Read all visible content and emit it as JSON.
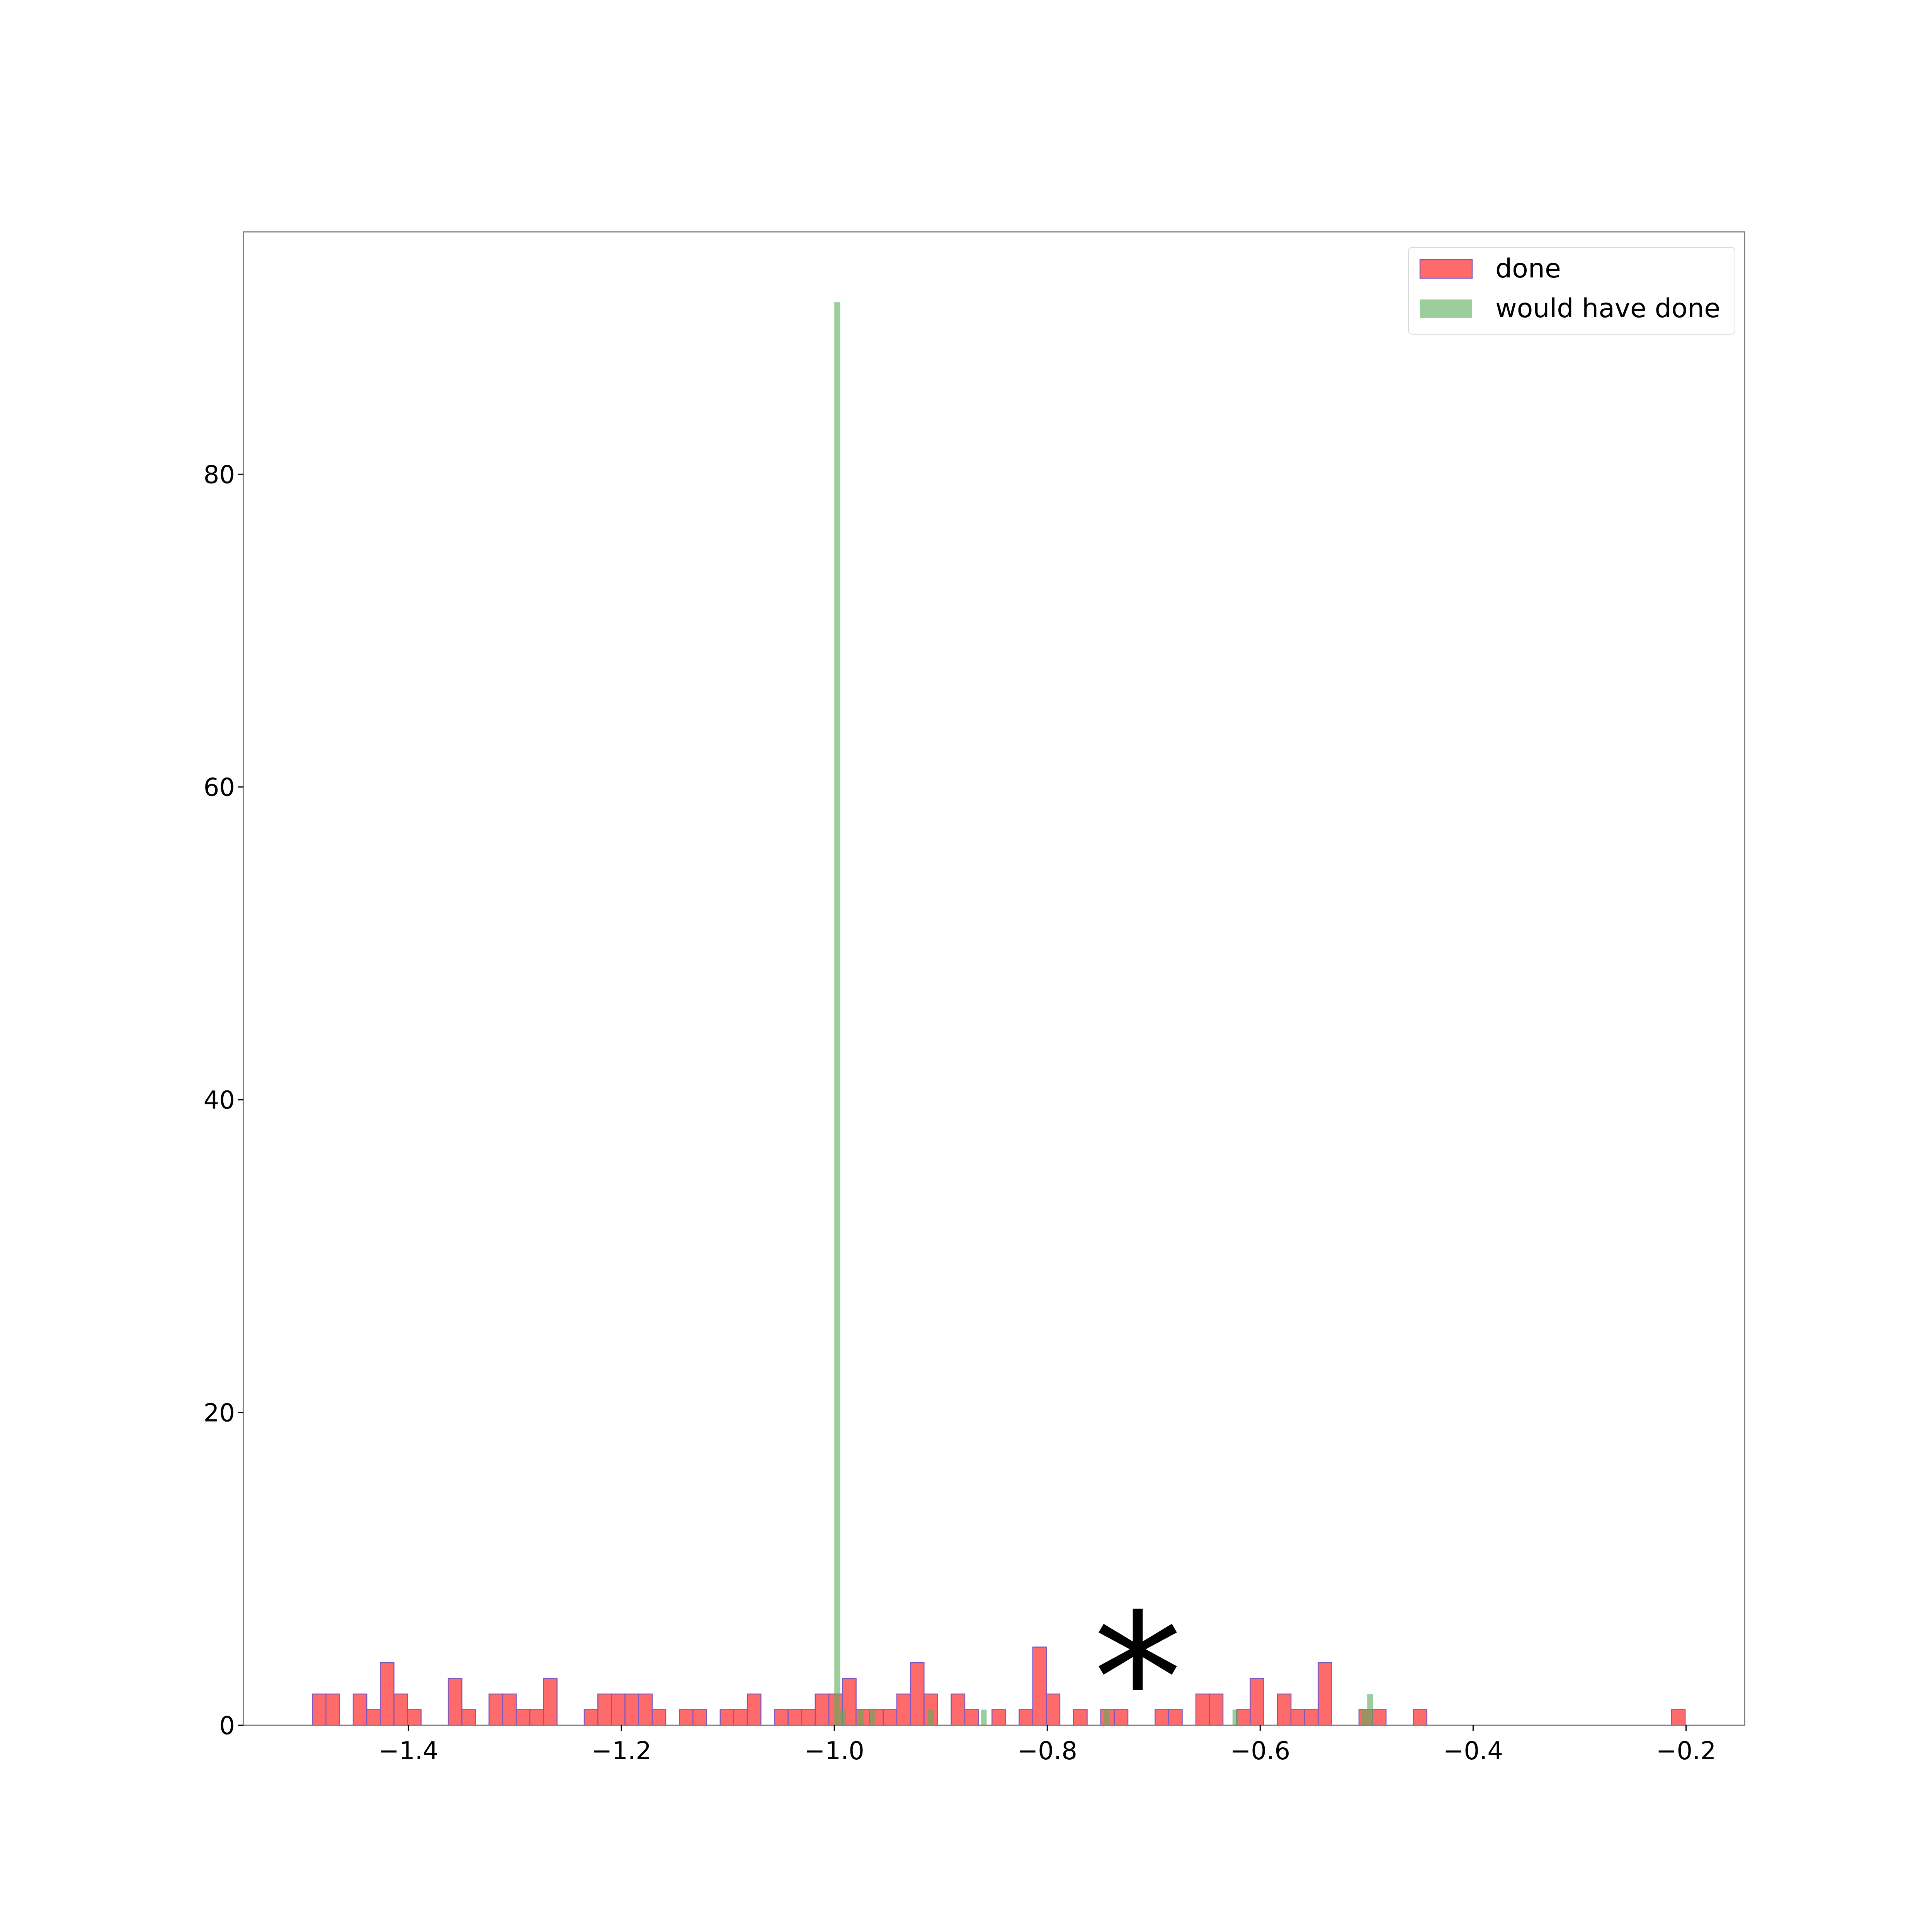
{
  "chart_data": {
    "type": "bar",
    "title": "",
    "xlabel": "",
    "ylabel": "",
    "xlim": [
      -1.555,
      -0.145
    ],
    "ylim": [
      0,
      95.5
    ],
    "xticks": [
      -1.4,
      -1.2,
      -1.0,
      -0.8,
      -0.6,
      -0.4,
      -0.2
    ],
    "xtick_labels": [
      "−1.4",
      "−1.2",
      "−1.0",
      "−0.8",
      "−0.6",
      "−0.4",
      "−0.2"
    ],
    "yticks": [
      0,
      20,
      40,
      60,
      80
    ],
    "ytick_labels": [
      "0",
      "20",
      "40",
      "60",
      "80"
    ],
    "grid": false,
    "legend_position": "top-right",
    "series": [
      {
        "name": "done",
        "color": "#ff6b6b",
        "edge_color": "#7b57c4",
        "opacity": 1.0,
        "bin_width": 0.01275,
        "bins": [
          [
            -1.4902,
            2
          ],
          [
            -1.4775,
            2
          ],
          [
            -1.4519,
            2
          ],
          [
            -1.4392,
            1
          ],
          [
            -1.4264,
            4
          ],
          [
            -1.4136,
            2
          ],
          [
            -1.4009,
            1
          ],
          [
            -1.3626,
            3
          ],
          [
            -1.3498,
            1
          ],
          [
            -1.3243,
            2
          ],
          [
            -1.3115,
            2
          ],
          [
            -1.2987,
            1
          ],
          [
            -1.286,
            1
          ],
          [
            -1.2732,
            3
          ],
          [
            -1.2349,
            1
          ],
          [
            -1.2221,
            2
          ],
          [
            -1.2094,
            2
          ],
          [
            -1.1966,
            2
          ],
          [
            -1.1838,
            2
          ],
          [
            -1.1711,
            1
          ],
          [
            -1.1455,
            1
          ],
          [
            -1.1328,
            1
          ],
          [
            -1.1072,
            1
          ],
          [
            -1.0945,
            1
          ],
          [
            -1.0817,
            2
          ],
          [
            -1.0562,
            1
          ],
          [
            -1.0434,
            1
          ],
          [
            -1.0306,
            1
          ],
          [
            -1.0179,
            2
          ],
          [
            -1.0051,
            2
          ],
          [
            -0.9923,
            3
          ],
          [
            -0.9796,
            1
          ],
          [
            -0.9668,
            1
          ],
          [
            -0.954,
            1
          ],
          [
            -0.9413,
            2
          ],
          [
            -0.9285,
            4
          ],
          [
            -0.9157,
            2
          ],
          [
            -0.8902,
            2
          ],
          [
            -0.8774,
            1
          ],
          [
            -0.8519,
            1
          ],
          [
            -0.8264,
            1
          ],
          [
            -0.8136,
            5
          ],
          [
            -0.8009,
            2
          ],
          [
            -0.7753,
            1
          ],
          [
            -0.7498,
            1
          ],
          [
            -0.737,
            1
          ],
          [
            -0.6987,
            1
          ],
          [
            -0.686,
            1
          ],
          [
            -0.6604,
            2
          ],
          [
            -0.6477,
            2
          ],
          [
            -0.6221,
            1
          ],
          [
            -0.6094,
            3
          ],
          [
            -0.5838,
            2
          ],
          [
            -0.5711,
            1
          ],
          [
            -0.5583,
            1
          ],
          [
            -0.5455,
            4
          ],
          [
            -0.5072,
            1
          ],
          [
            -0.4945,
            1
          ],
          [
            -0.4562,
            1
          ],
          [
            -0.2136,
            1
          ]
        ]
      },
      {
        "name": "would have done",
        "color": "#5aad5a",
        "opacity": 0.6,
        "bin_width": 0.0055,
        "bins": [
          [
            -1.0,
            91
          ],
          [
            -0.9945,
            1
          ],
          [
            -0.978,
            1
          ],
          [
            -0.967,
            1
          ],
          [
            -0.912,
            1
          ],
          [
            -0.8624,
            1
          ],
          [
            -0.747,
            1
          ],
          [
            -0.626,
            1
          ],
          [
            -0.505,
            1
          ],
          [
            -0.4995,
            2
          ]
        ]
      }
    ],
    "annotations": [
      {
        "text": "*",
        "x": -0.715,
        "y": 4.7
      }
    ]
  }
}
